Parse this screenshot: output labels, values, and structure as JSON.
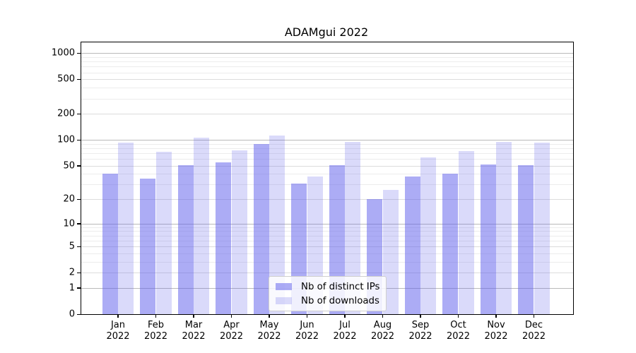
{
  "chart_data": {
    "type": "bar",
    "title": "ADAMgui 2022",
    "yscale": "log1p",
    "ylim": [
      0,
      1000
    ],
    "yticks": [
      0,
      1,
      2,
      5,
      10,
      20,
      50,
      100,
      200,
      500,
      1000
    ],
    "grid": "on",
    "legend_position": "lower-center",
    "categories": [
      {
        "month": "Jan",
        "year": "2022"
      },
      {
        "month": "Feb",
        "year": "2022"
      },
      {
        "month": "Mar",
        "year": "2022"
      },
      {
        "month": "Apr",
        "year": "2022"
      },
      {
        "month": "May",
        "year": "2022"
      },
      {
        "month": "Jun",
        "year": "2022"
      },
      {
        "month": "Jul",
        "year": "2022"
      },
      {
        "month": "Aug",
        "year": "2022"
      },
      {
        "month": "Sep",
        "year": "2022"
      },
      {
        "month": "Oct",
        "year": "2022"
      },
      {
        "month": "Nov",
        "year": "2022"
      },
      {
        "month": "Dec",
        "year": "2022"
      }
    ],
    "series": [
      {
        "name": "Nb of distinct IPs",
        "color": "rgba(96,96,235,0.52)",
        "values": [
          40,
          35,
          51,
          55,
          89,
          31,
          51,
          20,
          37,
          40,
          52,
          51
        ]
      },
      {
        "name": "Nb of downloads",
        "color": "rgba(96,96,235,0.23)",
        "values": [
          93,
          72,
          105,
          75,
          112,
          37,
          95,
          26,
          62,
          74,
          95,
          92
        ]
      }
    ]
  }
}
